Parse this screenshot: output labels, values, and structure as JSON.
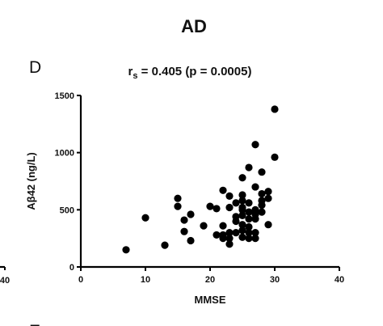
{
  "figure": {
    "group_title": "AD",
    "panel_letter": "D",
    "stat_prefix": "r",
    "stat_subscript": "s",
    "stat_rest": " = 0.405 (p = 0.0005)",
    "edge_tick_left": "40",
    "edge_letter_bottom": "E"
  },
  "chart_data": {
    "type": "scatter",
    "title": "r s = 0.405 (p = 0.0005)",
    "xlabel": "MMSE",
    "ylabel": "Aβ42 (ng/L)",
    "xlim": [
      0,
      40
    ],
    "ylim": [
      0,
      1500
    ],
    "xticks": [
      "0",
      "10",
      "20",
      "30",
      "40"
    ],
    "yticks": [
      "0",
      "500",
      "1000",
      "1500"
    ],
    "xtick_values": [
      0,
      10,
      20,
      30,
      40
    ],
    "ytick_values": [
      0,
      500,
      1000,
      1500
    ],
    "grid": false,
    "marker_color": "#000000",
    "points": [
      [
        7,
        150
      ],
      [
        10,
        430
      ],
      [
        13,
        190
      ],
      [
        15,
        600
      ],
      [
        15,
        530
      ],
      [
        16,
        310
      ],
      [
        16,
        410
      ],
      [
        17,
        230
      ],
      [
        17,
        460
      ],
      [
        19,
        360
      ],
      [
        20,
        530
      ],
      [
        21,
        280
      ],
      [
        21,
        510
      ],
      [
        22,
        250
      ],
      [
        22,
        280
      ],
      [
        22,
        360
      ],
      [
        22,
        670
      ],
      [
        23,
        300
      ],
      [
        23,
        200
      ],
      [
        23,
        250
      ],
      [
        23,
        520
      ],
      [
        23,
        620
      ],
      [
        24,
        300
      ],
      [
        24,
        400
      ],
      [
        24,
        440
      ],
      [
        24,
        560
      ],
      [
        25,
        260
      ],
      [
        25,
        320
      ],
      [
        25,
        370
      ],
      [
        25,
        450
      ],
      [
        25,
        500
      ],
      [
        25,
        520
      ],
      [
        25,
        580
      ],
      [
        25,
        780
      ],
      [
        25,
        630
      ],
      [
        26,
        350
      ],
      [
        26,
        420
      ],
      [
        26,
        480
      ],
      [
        26,
        560
      ],
      [
        26,
        870
      ],
      [
        26,
        300
      ],
      [
        26,
        250
      ],
      [
        27,
        1070
      ],
      [
        27,
        700
      ],
      [
        27,
        500
      ],
      [
        27,
        420
      ],
      [
        27,
        300
      ],
      [
        27,
        250
      ],
      [
        27,
        460
      ],
      [
        28,
        830
      ],
      [
        28,
        640
      ],
      [
        28,
        580
      ],
      [
        28,
        540
      ],
      [
        28,
        480
      ],
      [
        29,
        660
      ],
      [
        29,
        600
      ],
      [
        29,
        370
      ],
      [
        30,
        1380
      ],
      [
        30,
        960
      ]
    ]
  }
}
